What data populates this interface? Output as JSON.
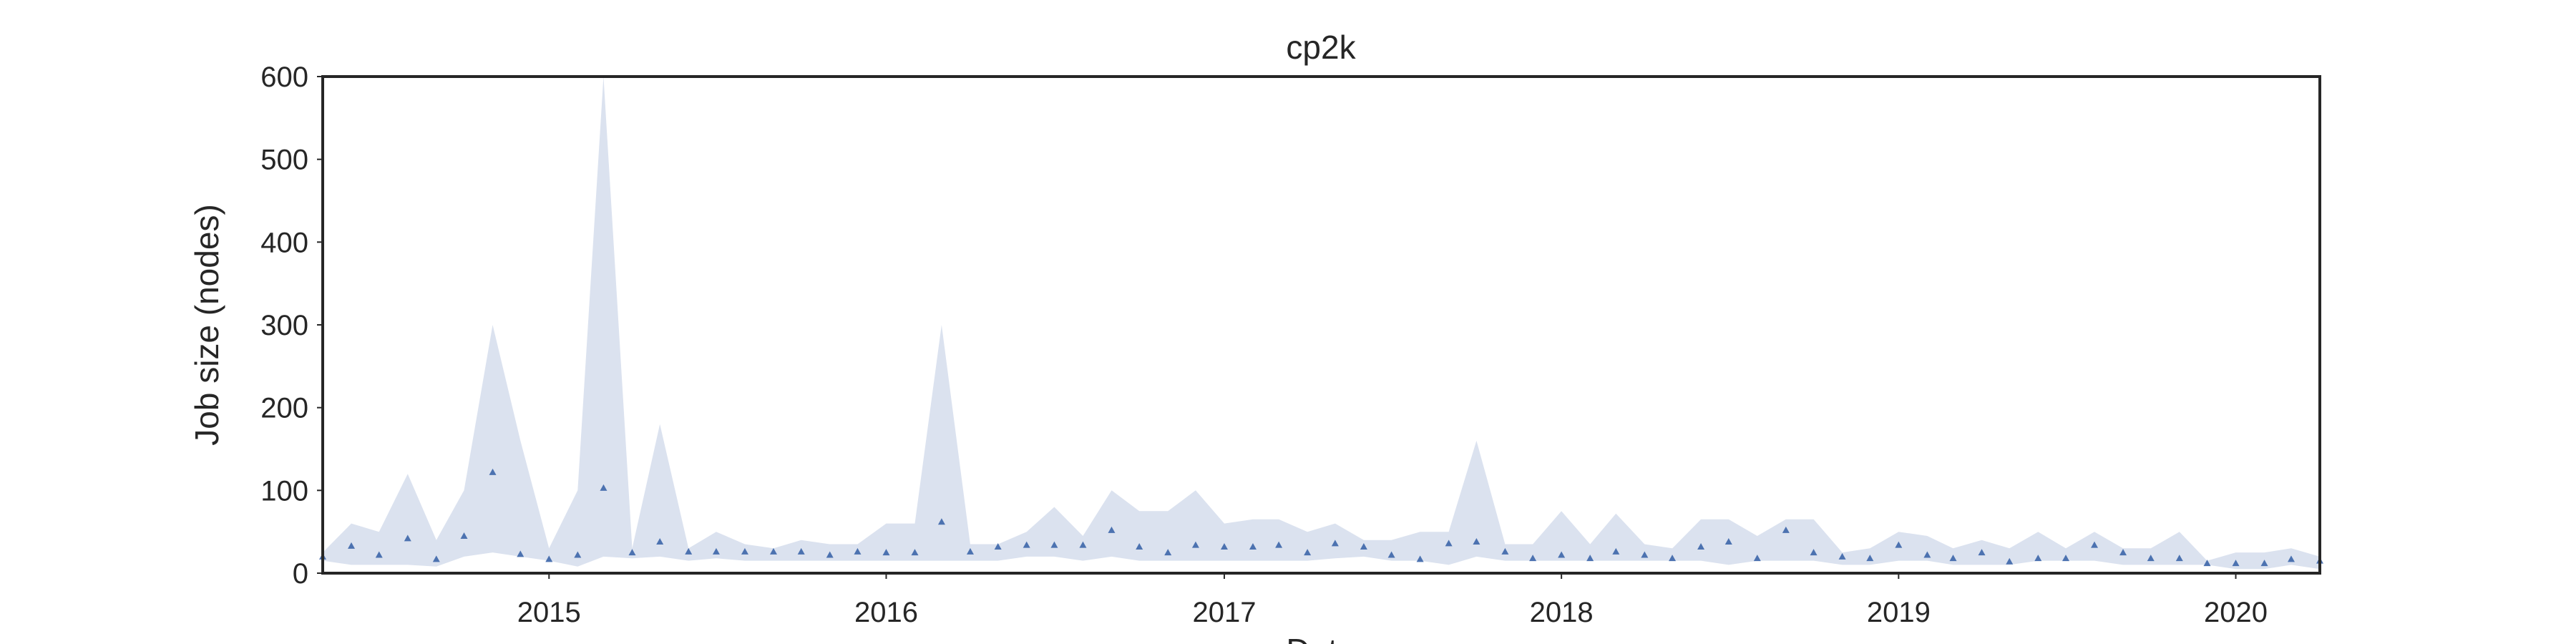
{
  "chart_data": {
    "type": "area",
    "title": "cp2k",
    "xlabel": "Date",
    "ylabel": "Job size (nodes)",
    "xlim": [
      "2014-05-01",
      "2020-04-01"
    ],
    "ylim": [
      0,
      600
    ],
    "yticks": [
      0,
      100,
      200,
      300,
      400,
      500,
      600
    ],
    "xticks": [
      {
        "date": "2015-01-01",
        "label": "2015"
      },
      {
        "date": "2016-01-01",
        "label": "2016"
      },
      {
        "date": "2017-01-01",
        "label": "2017"
      },
      {
        "date": "2018-01-01",
        "label": "2018"
      },
      {
        "date": "2019-01-01",
        "label": "2019"
      },
      {
        "date": "2020-01-01",
        "label": "2020"
      }
    ],
    "grid": false,
    "band_color": "#dbe2ef",
    "marker_color": "#4c72b0",
    "series": [
      {
        "x": [
          "2014-05-01",
          "2014-06-01",
          "2014-07-01",
          "2014-08-01",
          "2014-09-01",
          "2014-10-01",
          "2014-11-01",
          "2014-12-01",
          "2015-01-01",
          "2015-02-01",
          "2015-03-01",
          "2015-04-01",
          "2015-05-01",
          "2015-06-01",
          "2015-07-01",
          "2015-08-01",
          "2015-09-01",
          "2015-10-01",
          "2015-11-01",
          "2015-12-01",
          "2016-01-01",
          "2016-02-01",
          "2016-03-01",
          "2016-04-01",
          "2016-05-01",
          "2016-06-01",
          "2016-07-01",
          "2016-08-01",
          "2016-09-01",
          "2016-10-01",
          "2016-11-01",
          "2016-12-01",
          "2017-01-01",
          "2017-02-01",
          "2017-03-01",
          "2017-04-01",
          "2017-05-01",
          "2017-06-01",
          "2017-07-01",
          "2017-08-01",
          "2017-09-01",
          "2017-10-01",
          "2017-11-01",
          "2017-12-01",
          "2018-01-01",
          "2018-02-01",
          "2018-03-01",
          "2018-04-01",
          "2018-05-01",
          "2018-06-01",
          "2018-07-01",
          "2018-08-01",
          "2018-09-01",
          "2018-10-01",
          "2018-11-01",
          "2018-12-01",
          "2019-01-01",
          "2019-02-01",
          "2019-03-01",
          "2019-04-01",
          "2019-05-01",
          "2019-06-01",
          "2019-07-01",
          "2019-08-01",
          "2019-09-01",
          "2019-10-01",
          "2019-11-01",
          "2019-12-01",
          "2020-01-01",
          "2020-02-01",
          "2020-03-01",
          "2020-04-01"
        ],
        "upper": [
          25,
          60,
          50,
          120,
          40,
          100,
          300,
          160,
          30,
          100,
          600,
          30,
          180,
          30,
          50,
          35,
          30,
          40,
          35,
          35,
          60,
          60,
          300,
          35,
          35,
          50,
          80,
          45,
          100,
          75,
          75,
          100,
          60,
          65,
          65,
          50,
          60,
          40,
          40,
          50,
          50,
          160,
          35,
          35,
          75,
          35,
          72,
          35,
          30,
          65,
          65,
          45,
          65,
          65,
          25,
          30,
          50,
          45,
          30,
          40,
          30,
          50,
          30,
          50,
          30,
          30,
          50,
          15,
          25,
          25,
          30,
          20
        ],
        "lower": [
          15,
          10,
          10,
          10,
          8,
          20,
          25,
          20,
          15,
          8,
          20,
          18,
          20,
          15,
          18,
          15,
          15,
          15,
          15,
          15,
          15,
          15,
          15,
          15,
          15,
          20,
          20,
          15,
          20,
          15,
          15,
          15,
          15,
          15,
          15,
          15,
          18,
          20,
          15,
          15,
          10,
          20,
          15,
          15,
          15,
          15,
          15,
          15,
          15,
          15,
          10,
          15,
          15,
          15,
          10,
          10,
          15,
          15,
          10,
          10,
          10,
          15,
          15,
          15,
          10,
          10,
          10,
          10,
          5,
          5,
          10,
          5
        ],
        "median": [
          20,
          33,
          22,
          42,
          17,
          45,
          122,
          23,
          17,
          22,
          103,
          25,
          38,
          26,
          26,
          26,
          26,
          26,
          22,
          26,
          25,
          25,
          62,
          26,
          32,
          34,
          34,
          34,
          52,
          32,
          25,
          34,
          32,
          32,
          34,
          25,
          36,
          32,
          22,
          17,
          36,
          38,
          26,
          18,
          22,
          18,
          26,
          22,
          18,
          32,
          38,
          18,
          52,
          25,
          20,
          18,
          34,
          22,
          18,
          25,
          14,
          18,
          18,
          34,
          25,
          18,
          18,
          12,
          12,
          12,
          17,
          15
        ]
      }
    ]
  }
}
